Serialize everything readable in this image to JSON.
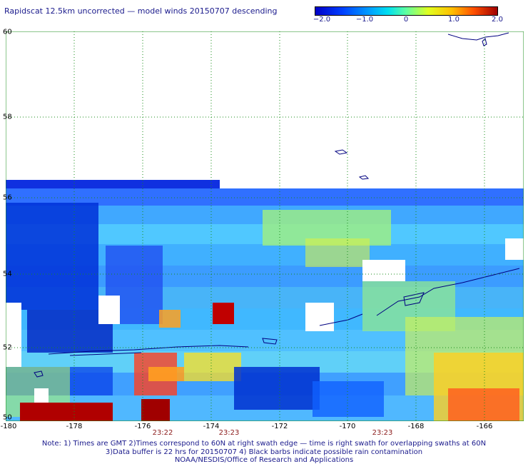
{
  "title": "Rapidscat 12.5km uncorrected — model winds 20150707 descending",
  "colorbar": {
    "labels": [
      "−2.0",
      "−1.0",
      "0",
      "1.0",
      "2.0"
    ],
    "colors": [
      "#0000c8",
      "#0040ff",
      "#00a0ff",
      "#00e0f0",
      "#60ffa0",
      "#e0ff20",
      "#ffc000",
      "#ff5000",
      "#a00000"
    ]
  },
  "axes": {
    "lon_ticks": [
      "-180",
      "-178",
      "-176",
      "-174",
      "-172",
      "-170",
      "-168",
      "-166"
    ],
    "lat_ticks": [
      "60",
      "58",
      "56",
      "54",
      "52",
      "50"
    ],
    "lon_range": [
      -180,
      -164.8
    ],
    "lat_range": [
      50,
      60
    ],
    "grid": true,
    "grid_color": "#1a8c1a"
  },
  "time_labels": [
    "23:22",
    "23:23",
    "23:23"
  ],
  "notes": [
    "Note: 1) Times are GMT 2)Times correspond to 60N at right swath edge — time is right swath for overlapping swaths at 60N",
    "3)Data buffer is 22 hrs for 20150707 4) Black barbs indicate possible rain contamination",
    "NOAA/NESDIS/Office of Research and Applications"
  ]
}
